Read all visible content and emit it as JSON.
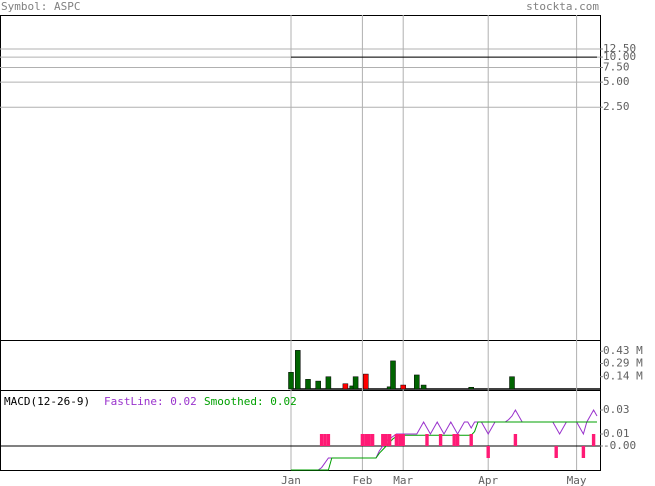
{
  "header": {
    "symbol": "Symbol: ASPC",
    "site": "stockta.com"
  },
  "chart_data": [
    {
      "type": "line",
      "log": true,
      "grid": true,
      "categories": [
        "Jan",
        null,
        null,
        null,
        null,
        null,
        null,
        null,
        null,
        null,
        null,
        null,
        null,
        null,
        null,
        null,
        null,
        null,
        null,
        null,
        null,
        "Feb",
        null,
        null,
        null,
        null,
        null,
        null,
        null,
        null,
        null,
        null,
        null,
        "Mar",
        null,
        null,
        null,
        null,
        null,
        null,
        null,
        null,
        null,
        null,
        null,
        null,
        null,
        null,
        null,
        null,
        null,
        null,
        null,
        null,
        null,
        null,
        null,
        null,
        "Apr",
        null,
        null,
        null,
        null,
        null,
        null,
        null,
        null,
        null,
        null,
        null,
        null,
        null,
        null,
        null,
        null,
        null,
        null,
        null,
        null,
        null,
        null,
        null,
        null,
        null,
        "May",
        null,
        null,
        null,
        null,
        null,
        null
      ],
      "ylim": [
        0.004,
        32
      ],
      "yticks": [
        {
          "value": 12.5,
          "label": "12.50"
        },
        {
          "value": 10,
          "label": "10.00"
        },
        {
          "value": 7.5,
          "label": "7.50"
        },
        {
          "value": 5,
          "label": "5.00"
        },
        {
          "value": 2.5,
          "label": "2.50"
        }
      ],
      "series": [
        {
          "color": "#000000",
          "values": [
            10,
            10,
            10,
            10,
            10,
            10,
            10,
            10,
            10,
            10,
            10,
            10,
            10,
            10,
            10,
            10,
            10,
            10,
            10,
            10,
            10,
            10,
            10,
            10,
            10,
            10,
            10,
            10,
            10,
            10,
            10,
            10,
            10,
            10,
            10,
            10,
            10,
            10,
            10,
            10,
            10,
            10,
            10,
            10,
            10,
            10,
            10,
            10,
            10,
            10,
            10,
            10,
            10,
            10,
            10,
            10,
            10,
            10,
            10,
            10,
            10,
            10,
            10,
            10,
            10,
            10,
            10,
            10,
            10,
            10,
            10,
            10,
            10,
            10,
            10,
            10,
            10,
            10,
            10,
            10,
            10,
            10,
            10,
            10,
            10,
            10,
            10,
            10,
            10,
            10,
            10
          ]
        }
      ]
    },
    {
      "type": "bar",
      "grid": false,
      "ylim": [
        0,
        535000
      ],
      "yticks": [
        {
          "value": 430000,
          "label": "0.43 M"
        },
        {
          "value": 290000,
          "label": "0.29 M"
        },
        {
          "value": 140000,
          "label": "0.14 M"
        }
      ],
      "values": [
        190000,
        null,
        440000,
        null,
        null,
        110000,
        null,
        null,
        90000,
        null,
        null,
        140000,
        null,
        null,
        null,
        null,
        60000,
        null,
        35000,
        140000,
        null,
        null,
        170000,
        null,
        null,
        null,
        null,
        null,
        null,
        25000,
        320000,
        null,
        null,
        45000,
        null,
        null,
        null,
        160000,
        null,
        45000,
        null,
        null,
        null,
        null,
        null,
        null,
        null,
        null,
        null,
        null,
        null,
        null,
        null,
        20000,
        null,
        null,
        null,
        null,
        null,
        null,
        null,
        null,
        null,
        null,
        null,
        140000,
        null,
        null,
        null,
        null,
        null,
        null,
        null,
        null,
        null,
        null,
        null,
        null,
        null,
        null,
        null,
        null,
        null,
        null,
        null,
        null,
        null,
        null,
        null,
        null,
        null
      ],
      "colors": [
        "#006400",
        null,
        "#006400",
        null,
        null,
        "#006400",
        null,
        null,
        "#006400",
        null,
        null,
        "#006400",
        null,
        null,
        null,
        null,
        "#ff0000",
        null,
        "#006400",
        "#006400",
        null,
        null,
        "#ff0000",
        null,
        null,
        null,
        null,
        null,
        null,
        "#006400",
        "#006400",
        null,
        null,
        "#ff0000",
        null,
        null,
        null,
        "#006400",
        null,
        "#006400",
        null,
        null,
        null,
        null,
        null,
        null,
        null,
        null,
        null,
        null,
        null,
        null,
        null,
        "#006400",
        null,
        null,
        null,
        null,
        null,
        null,
        null,
        null,
        null,
        null,
        null,
        "#006400",
        null,
        null,
        null,
        null,
        null,
        null,
        null,
        null,
        null,
        null,
        null,
        null,
        null,
        null,
        null,
        null,
        null,
        null,
        null,
        null,
        null,
        null,
        null,
        null,
        null
      ]
    },
    {
      "type": "line",
      "grid": false,
      "title": "MACD(12-26-9)",
      "ylim": [
        -0.02,
        0.045
      ],
      "yticks": [
        0.03,
        0.01,
        {
          "value": 0,
          "label": "-0.00"
        }
      ],
      "series": [
        {
          "name": "FastLine: 0.02",
          "color": "#9932cc",
          "values": [
            -0.02,
            -0.02,
            -0.02,
            -0.02,
            -0.02,
            -0.02,
            -0.02,
            -0.02,
            -0.02,
            -0.018,
            -0.014,
            -0.01,
            -0.01,
            -0.01,
            -0.01,
            -0.01,
            -0.01,
            -0.01,
            -0.01,
            -0.01,
            -0.01,
            -0.01,
            -0.01,
            -0.01,
            -0.01,
            -0.01,
            -0.004,
            0,
            0.004,
            0.006,
            0.008,
            0.01,
            0.01,
            0.01,
            0.01,
            0.01,
            0.01,
            0.01,
            0.015,
            0.02,
            0.015,
            0.01,
            0.015,
            0.02,
            0.015,
            0.01,
            0.015,
            0.02,
            0.015,
            0.01,
            0.015,
            0.02,
            0.02,
            0.015,
            0.02,
            0.02,
            0.02,
            0.015,
            0.01,
            0.015,
            0.02,
            0.02,
            0.02,
            0.02,
            0.022,
            0.025,
            0.03,
            0.025,
            0.02,
            0.02,
            0.02,
            0.02,
            0.02,
            0.02,
            0.02,
            0.02,
            0.02,
            0.02,
            0.015,
            0.01,
            0.015,
            0.02,
            0.02,
            0.02,
            0.02,
            0.015,
            0.01,
            0.02,
            0.025,
            0.03,
            0.025
          ]
        },
        {
          "name": "Smoothed: 0.02",
          "color": "#00a000",
          "values": [
            -0.02,
            -0.02,
            -0.02,
            -0.02,
            -0.02,
            -0.02,
            -0.02,
            -0.02,
            -0.02,
            -0.02,
            -0.02,
            -0.02,
            -0.01,
            -0.01,
            -0.01,
            -0.01,
            -0.01,
            -0.01,
            -0.01,
            -0.01,
            -0.01,
            -0.01,
            -0.01,
            -0.01,
            -0.01,
            -0.01,
            -0.006,
            -0.003,
            0,
            0.003,
            0.006,
            0.008,
            0.009,
            0.009,
            0.009,
            0.009,
            0.009,
            0.009,
            0.009,
            0.009,
            0.009,
            0.009,
            0.009,
            0.009,
            0.009,
            0.009,
            0.009,
            0.009,
            0.009,
            0.009,
            0.009,
            0.009,
            0.009,
            0.009,
            0.012,
            0.02,
            0.02,
            0.02,
            0.02,
            0.02,
            0.02,
            0.02,
            0.02,
            0.02,
            0.02,
            0.02,
            0.02,
            0.02,
            0.02,
            0.02,
            0.02,
            0.02,
            0.02,
            0.02,
            0.02,
            0.02,
            0.02,
            0.02,
            0.02,
            0.02,
            0.02,
            0.02,
            0.02,
            0.02,
            0.02,
            0.02,
            0.02,
            0.02,
            0.02,
            0.02,
            0.02
          ]
        }
      ],
      "histogram": {
        "color": "#ff1a75",
        "values": [
          null,
          null,
          null,
          null,
          null,
          null,
          null,
          null,
          null,
          0.01,
          0.01,
          0.01,
          null,
          null,
          null,
          null,
          null,
          null,
          null,
          null,
          null,
          0.01,
          0.01,
          0.01,
          0.01,
          null,
          null,
          0.01,
          0.01,
          0.01,
          null,
          0.01,
          0.01,
          0.01,
          null,
          null,
          null,
          null,
          null,
          null,
          0.01,
          null,
          null,
          null,
          0.01,
          null,
          null,
          null,
          0.01,
          0.01,
          null,
          null,
          null,
          0.01,
          null,
          null,
          null,
          null,
          -0.01,
          null,
          null,
          null,
          null,
          null,
          null,
          null,
          0.01,
          null,
          null,
          null,
          null,
          null,
          null,
          null,
          null,
          null,
          null,
          null,
          -0.01,
          null,
          null,
          null,
          null,
          null,
          null,
          null,
          -0.01,
          null,
          null,
          0.01,
          null
        ]
      }
    }
  ]
}
